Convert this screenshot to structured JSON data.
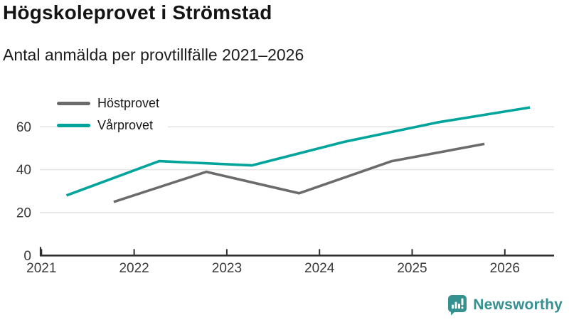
{
  "header": {
    "title": "Högskoleprovet i Strömstad",
    "subtitle": "Antal anmälda per provtillfälle 2021–2026"
  },
  "legend": {
    "position": "top-left",
    "items": [
      {
        "label": "Höstprovet",
        "color": "#6b6b6b"
      },
      {
        "label": "Vårprovet",
        "color": "#00a49a"
      }
    ]
  },
  "axes": {
    "y_ticks": [
      "0",
      "20",
      "40",
      "60"
    ],
    "x_ticks": [
      "2021",
      "2022",
      "2023",
      "2024",
      "2025",
      "2026"
    ],
    "grid_color": "#e4e4e4",
    "axis_color": "#2e2e2e",
    "tick_label_color": "#3a3a3a"
  },
  "footer": {
    "brand": "Newsworthy",
    "brand_color": "#35918f",
    "logo_icon": "bar-chart-speech-bubble-icon"
  },
  "chart_data": {
    "type": "line",
    "title": "Högskoleprovet i Strömstad",
    "subtitle": "Antal anmälda per provtillfälle 2021–2026",
    "xlabel": "",
    "ylabel": "Antal anmälda",
    "xlim": [
      2021,
      2026.55
    ],
    "ylim": [
      0,
      74
    ],
    "grid": "horizontal",
    "legend_position": "top-left",
    "series": [
      {
        "name": "Höstprovet",
        "color": "#6b6b6b",
        "season_x_offset": 0.78,
        "points": [
          {
            "year": 2021,
            "value": 25
          },
          {
            "year": 2022,
            "value": 39
          },
          {
            "year": 2023,
            "value": 29
          },
          {
            "year": 2024,
            "value": 44
          },
          {
            "year": 2025,
            "value": 52
          }
        ]
      },
      {
        "name": "Vårprovet",
        "color": "#00a49a",
        "season_x_offset": 0.27,
        "points": [
          {
            "year": 2021,
            "value": 28
          },
          {
            "year": 2022,
            "value": 44
          },
          {
            "year": 2023,
            "value": 42
          },
          {
            "year": 2024,
            "value": 53
          },
          {
            "year": 2025,
            "value": 62
          },
          {
            "year": 2026,
            "value": 69
          }
        ]
      }
    ]
  }
}
